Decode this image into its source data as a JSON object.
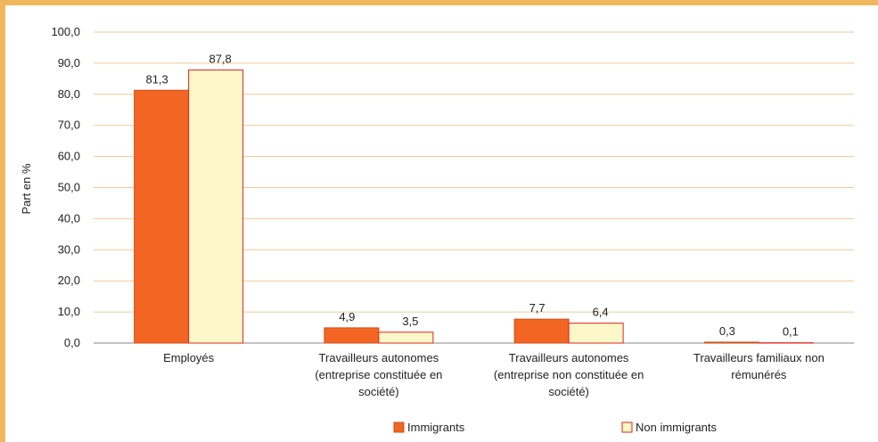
{
  "chart_data": {
    "type": "bar",
    "title": "",
    "xlabel": "",
    "ylabel": "Part en %",
    "ylim": [
      0,
      100
    ],
    "yticks": [
      "0,0",
      "10,0",
      "20,0",
      "30,0",
      "40,0",
      "50,0",
      "60,0",
      "70,0",
      "80,0",
      "90,0",
      "100,0"
    ],
    "grid": true,
    "legend_position": "bottom",
    "categories": [
      [
        "Employés"
      ],
      [
        "Travailleurs autonomes",
        "(entreprise constituée en",
        "société)"
      ],
      [
        "Travailleurs autonomes",
        "(entreprise non constituée en",
        "société)"
      ],
      [
        "Travailleurs familiaux non",
        "rémunérés"
      ]
    ],
    "series": [
      {
        "name": "Immigrants",
        "values": [
          81.3,
          4.9,
          7.7,
          0.3
        ],
        "labels": [
          "81,3",
          "4,9",
          "7,7",
          "0,3"
        ],
        "fill": "#f26522",
        "stroke": "#c9521a"
      },
      {
        "name": "Non immigrants",
        "values": [
          87.8,
          3.5,
          6.4,
          0.1
        ],
        "labels": [
          "87,8",
          "3,5",
          "6,4",
          "0,1"
        ],
        "fill": "#fdf7c9",
        "stroke": "#e2231a"
      }
    ],
    "colors": {
      "grid": "#f0c995",
      "frame": "#f0b75c",
      "axis": "#888888"
    }
  }
}
